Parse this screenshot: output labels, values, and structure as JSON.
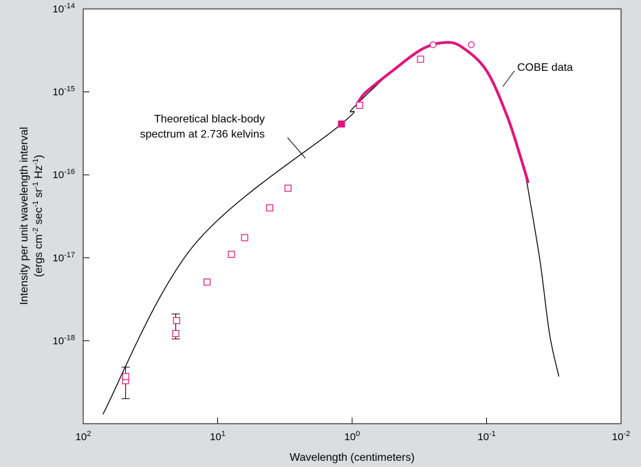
{
  "chart_data": {
    "type": "scatter",
    "xlabel": "Wavelength (centimeters)",
    "ylabel_line1": "Intensity per unit wavelength interval",
    "ylabel_line2": "(ergs cm-2 sec-1 sr-1 Hz-1)",
    "x_scale": "log-reversed",
    "y_scale": "log",
    "xlim": [
      100,
      0.01
    ],
    "ylim": [
      1e-19,
      1e-14
    ],
    "x_ticks": [
      {
        "base": "10",
        "exp": "2",
        "value": 100
      },
      {
        "base": "10",
        "exp": "1",
        "value": 10
      },
      {
        "base": "10",
        "exp": "0",
        "value": 1
      },
      {
        "base": "10",
        "exp": "-1",
        "value": 0.1
      },
      {
        "base": "10",
        "exp": "-2",
        "value": 0.01
      }
    ],
    "y_ticks": [
      {
        "base": "10",
        "exp": "-14",
        "value": 1e-14
      },
      {
        "base": "10",
        "exp": "-15",
        "value": 1e-15
      },
      {
        "base": "10",
        "exp": "-16",
        "value": 1e-16
      },
      {
        "base": "10",
        "exp": "-17",
        "value": 1e-17
      },
      {
        "base": "10",
        "exp": "-18",
        "value": 1e-18
      }
    ],
    "annotations": {
      "theory_line1": "Theoretical black-body",
      "theory_line2": "spectrum at 2.736 kelvins",
      "cobe": "COBE data"
    },
    "colors": {
      "background": "#dcdddf",
      "plot": "#ffffff",
      "data": "#e0157c",
      "theory": "#000000"
    },
    "series": [
      {
        "kind": "theory-curve",
        "points": [
          [
            71.4,
            1.3e-19
          ],
          [
            15.0,
            1.42e-17
          ],
          [
            1.2,
            4.1e-16
          ],
          [
            1.0,
            6.2e-16
          ],
          [
            0.5,
            1.8e-15
          ],
          [
            0.3,
            3.3e-15
          ],
          [
            0.2,
            3.95e-15
          ],
          [
            0.15,
            3.4e-15
          ],
          [
            0.1,
            1.8e-15
          ],
          [
            0.07,
            5e-16
          ],
          [
            0.055,
            1.5e-16
          ],
          [
            0.05,
            7.8e-17
          ],
          [
            0.049,
            6.5e-17
          ],
          [
            0.04,
            9e-18
          ],
          [
            0.034,
            1.2e-18
          ],
          [
            0.029,
            3.7e-19
          ]
        ]
      },
      {
        "kind": "cobe-curve",
        "points": [
          [
            0.92,
            7e-16
          ],
          [
            0.8,
            9.7e-16
          ],
          [
            0.5,
            1.8e-15
          ],
          [
            0.3,
            3.3e-15
          ],
          [
            0.2,
            3.95e-15
          ],
          [
            0.15,
            3.4e-15
          ],
          [
            0.1,
            1.8e-15
          ],
          [
            0.07,
            5e-16
          ],
          [
            0.055,
            1.5e-16
          ],
          [
            0.049,
            8e-17
          ]
        ]
      },
      {
        "kind": "square-points",
        "points": [
          [
            48.4,
            3.3e-19
          ],
          [
            48.2,
            3.7e-19
          ],
          [
            20.5,
            1.22e-18
          ],
          [
            20.2,
            1.75e-18
          ],
          [
            12.0,
            5.1e-18
          ],
          [
            7.9,
            1.1e-17
          ],
          [
            6.3,
            1.75e-17
          ],
          [
            4.1,
            4e-17
          ],
          [
            3.0,
            6.9e-17
          ],
          [
            0.88,
            6.9e-16
          ],
          [
            0.31,
            2.48e-15
          ]
        ]
      },
      {
        "kind": "filled-square-point",
        "points": [
          [
            1.2,
            4.1e-16
          ]
        ]
      },
      {
        "kind": "circle-points",
        "points": [
          [
            0.25,
            3.7e-15
          ],
          [
            0.13,
            3.7e-15
          ]
        ]
      },
      {
        "kind": "error-bars",
        "points": [
          [
            48.4,
            4.8e-19,
            2e-19
          ],
          [
            20.5,
            2.1e-18,
            1.05e-18
          ]
        ]
      }
    ]
  }
}
